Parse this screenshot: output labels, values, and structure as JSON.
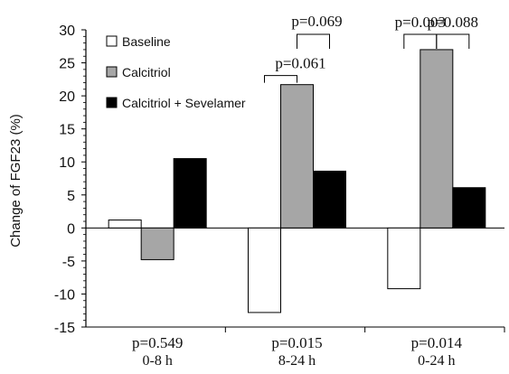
{
  "chart_data": {
    "type": "bar",
    "ylabel": "Change of FGF23 (%)",
    "ylim": [
      -15,
      30
    ],
    "ytick_step": 5,
    "categories": [
      {
        "label": "0-8 h",
        "p_label": "p=0.549"
      },
      {
        "label": "8-24 h",
        "p_label": "p=0.015"
      },
      {
        "label": "0-24 h",
        "p_label": "p=0.014"
      }
    ],
    "series": [
      {
        "name": "Baseline",
        "color": "#ffffff",
        "values": [
          1.2,
          -12.8,
          -9.2
        ]
      },
      {
        "name": "Calcitriol",
        "color": "#a6a6a6",
        "values": [
          -4.8,
          21.7,
          27.0
        ]
      },
      {
        "name": "Calcitriol + Sevelamer",
        "color": "#000000",
        "values": [
          10.5,
          8.6,
          6.1
        ]
      }
    ],
    "legend": "top-left",
    "comparisons": [
      {
        "category": 1,
        "from": 0,
        "to": 1,
        "label": "p=0.061"
      },
      {
        "category": 1,
        "from": 1,
        "to": 2,
        "label": "p=0.069"
      },
      {
        "category": 2,
        "from": 0,
        "to": 1,
        "label": "p=0.003"
      },
      {
        "category": 2,
        "from": 1,
        "to": 2,
        "label": "p=0.088"
      }
    ]
  }
}
